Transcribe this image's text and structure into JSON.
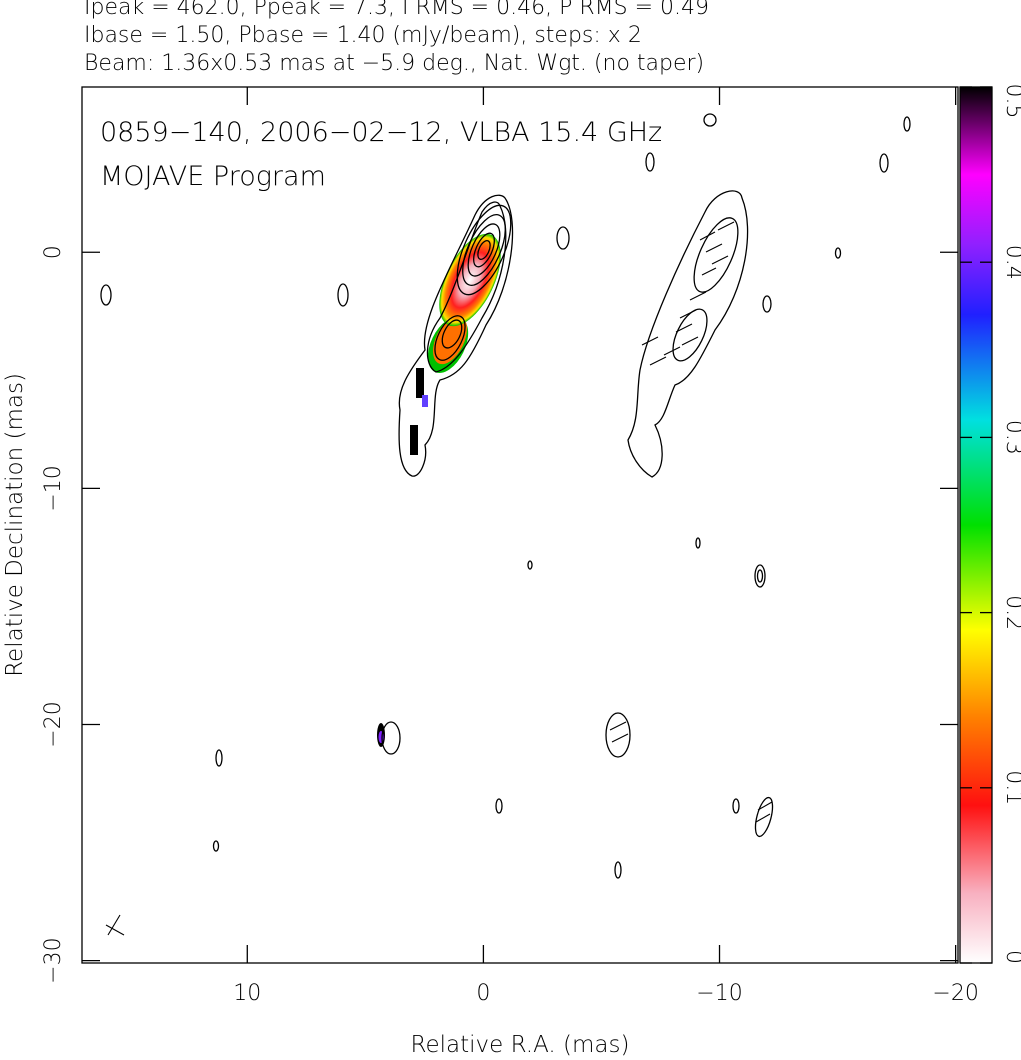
{
  "chart_data": {
    "type": "contour-map",
    "title_lines": [
      "Ipeak = 462.0, Ppeak = 7.3, I RMS = 0.46, P RMS = 0.49",
      "Ibase = 1.50, Pbase = 1.40 (mJy/beam), steps: x 2",
      "Beam: 1.36x0.53 mas at −5.9 deg., Nat. Wgt. (no taper)"
    ],
    "annotations": [
      "0859−140, 2006−02−12, VLBA 15.4 GHz",
      "MOJAVE Program"
    ],
    "xlabel": "Relative R.A. (mas)",
    "ylabel": "Relative Declination (mas)",
    "xlim": [
      17,
      -20.1
    ],
    "ylim": [
      -30.1,
      7
    ],
    "xticks": [
      10,
      0,
      {
        "value": -10,
        "label": "−10"
      },
      {
        "value": -20,
        "label": "−20"
      }
    ],
    "yticks": [
      0,
      {
        "value": -10,
        "label": "−10"
      },
      {
        "value": -20,
        "label": "−20"
      },
      {
        "value": -30,
        "label": "−30"
      }
    ],
    "clim": [
      0,
      0.5
    ],
    "cticks": [
      0,
      0.1,
      0.2,
      0.3,
      0.4,
      0.5
    ]
  }
}
